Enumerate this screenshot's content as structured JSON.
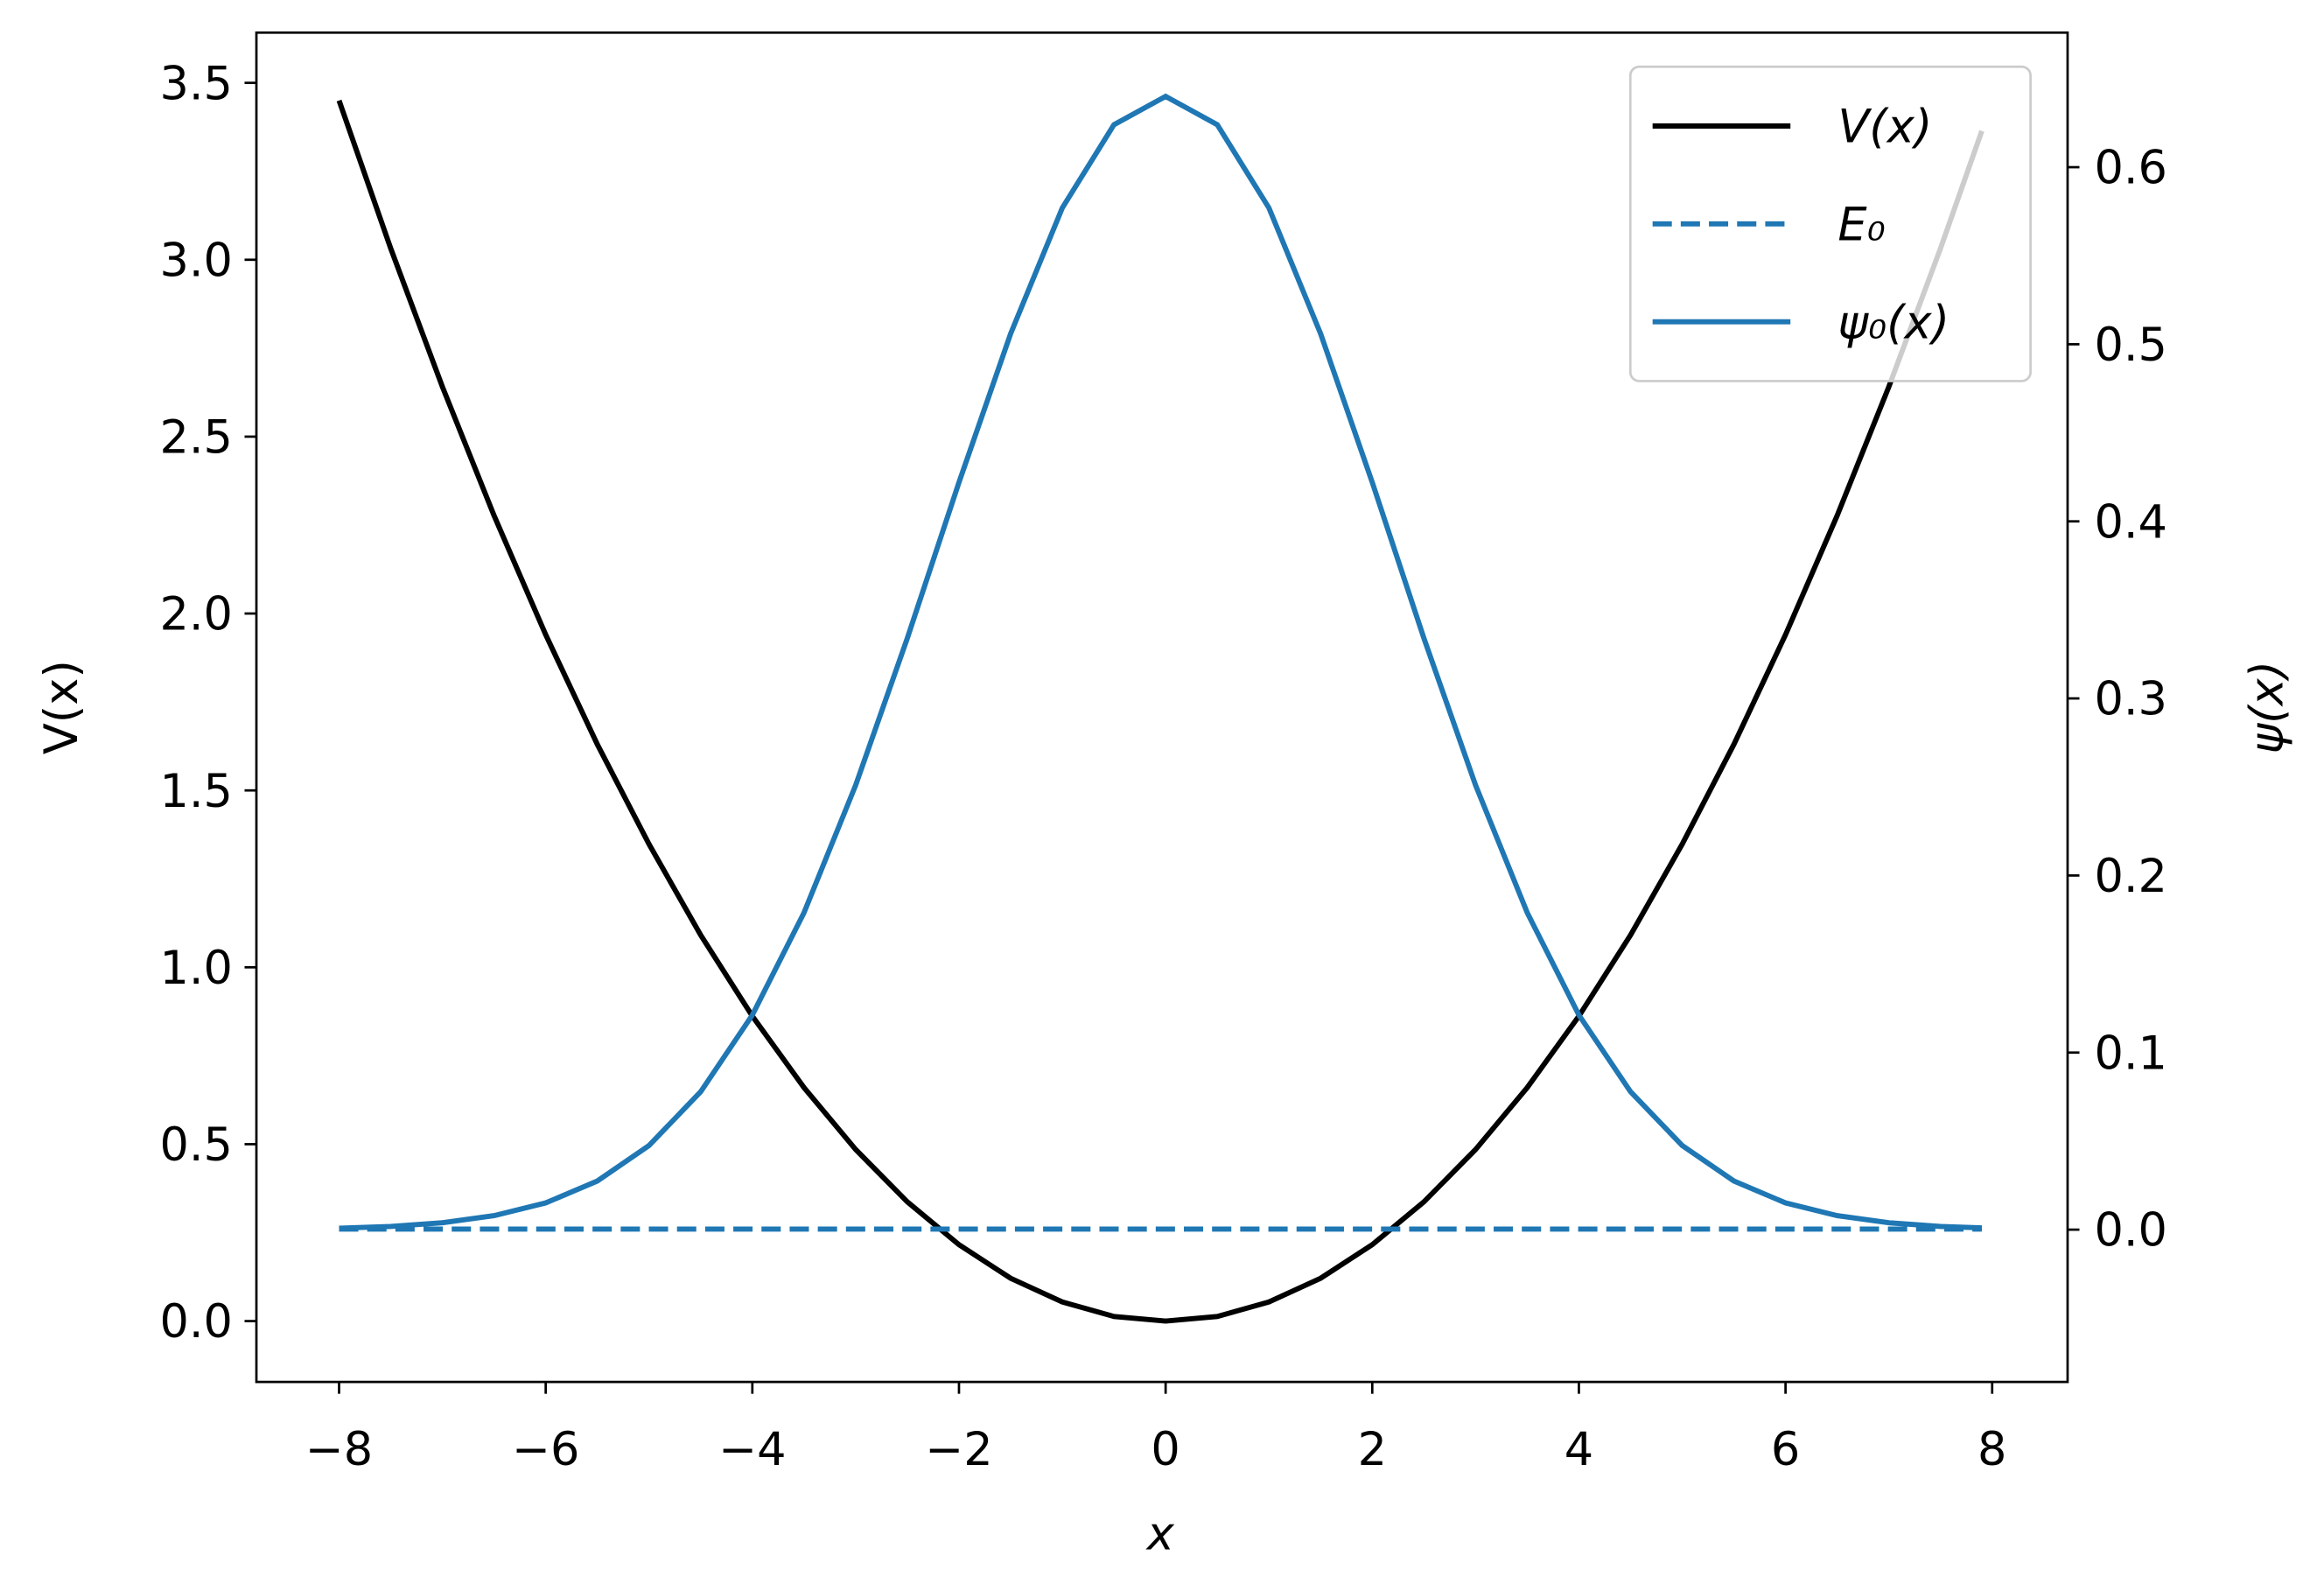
{
  "chart_data": {
    "type": "line",
    "x_label": "x",
    "y_label": "V(x)",
    "y2_label": "ψ(x)",
    "x": [
      -8,
      -7.5,
      -7,
      -6.5,
      -6,
      -5.5,
      -5,
      -4.5,
      -4,
      -3.5,
      -3,
      -2.5,
      -2,
      -1.5,
      -1,
      -0.5,
      0,
      0.5,
      1,
      1.5,
      2,
      2.5,
      3,
      3.5,
      4,
      4.5,
      5,
      5.5,
      6,
      6.5,
      7,
      7.5,
      7.9
    ],
    "series": [
      {
        "name": "V(x)",
        "color": "#000000",
        "axis": "y",
        "values": [
          3.45,
          3.032,
          2.641,
          2.277,
          1.94,
          1.63,
          1.348,
          1.091,
          0.862,
          0.66,
          0.485,
          0.337,
          0.216,
          0.121,
          0.054,
          0.013,
          0,
          0.013,
          0.054,
          0.121,
          0.216,
          0.337,
          0.485,
          0.66,
          0.862,
          1.091,
          1.348,
          1.63,
          1.94,
          2.277,
          2.641,
          3.032,
          3.364
        ]
      },
      {
        "name": "E₀",
        "color": "#1f77b4",
        "axis": "y",
        "dashed": true,
        "x": [
          -8,
          7.9
        ],
        "values": [
          0.26,
          0.26
        ]
      },
      {
        "name": "ψ₀(x)",
        "color": "#1f77b4",
        "axis": "y2",
        "values": [
          0.0008,
          0.0018,
          0.0039,
          0.0079,
          0.0151,
          0.0275,
          0.0475,
          0.0779,
          0.1212,
          0.179,
          0.251,
          0.334,
          0.422,
          0.506,
          0.577,
          0.624,
          0.64,
          0.624,
          0.577,
          0.506,
          0.422,
          0.334,
          0.251,
          0.179,
          0.1212,
          0.0779,
          0.0475,
          0.0275,
          0.0151,
          0.0079,
          0.0039,
          0.0018,
          0.001
        ]
      }
    ],
    "xlim": [
      -8.8,
      8.73
    ],
    "xticks": [
      {
        "value": -8,
        "label": "−8"
      },
      {
        "value": -6,
        "label": "−6"
      },
      {
        "value": -4,
        "label": "−4"
      },
      {
        "value": -2,
        "label": "−2"
      },
      0,
      2,
      4,
      6,
      8
    ],
    "ylim": [
      -0.172,
      3.642
    ],
    "yticks": [
      {
        "value": 0,
        "label": "0.0"
      },
      0.5,
      {
        "value": 1,
        "label": "1.0"
      },
      1.5,
      {
        "value": 2,
        "label": "2.0"
      },
      2.5,
      {
        "value": 3,
        "label": "3.0"
      },
      3.5
    ],
    "y2lim": [
      -0.086,
      0.676
    ],
    "y2ticks": [
      {
        "value": 0,
        "label": "0.0"
      },
      0.1,
      0.2,
      0.3,
      0.4,
      0.5,
      0.6
    ],
    "legend": "upper right",
    "grid": false
  }
}
